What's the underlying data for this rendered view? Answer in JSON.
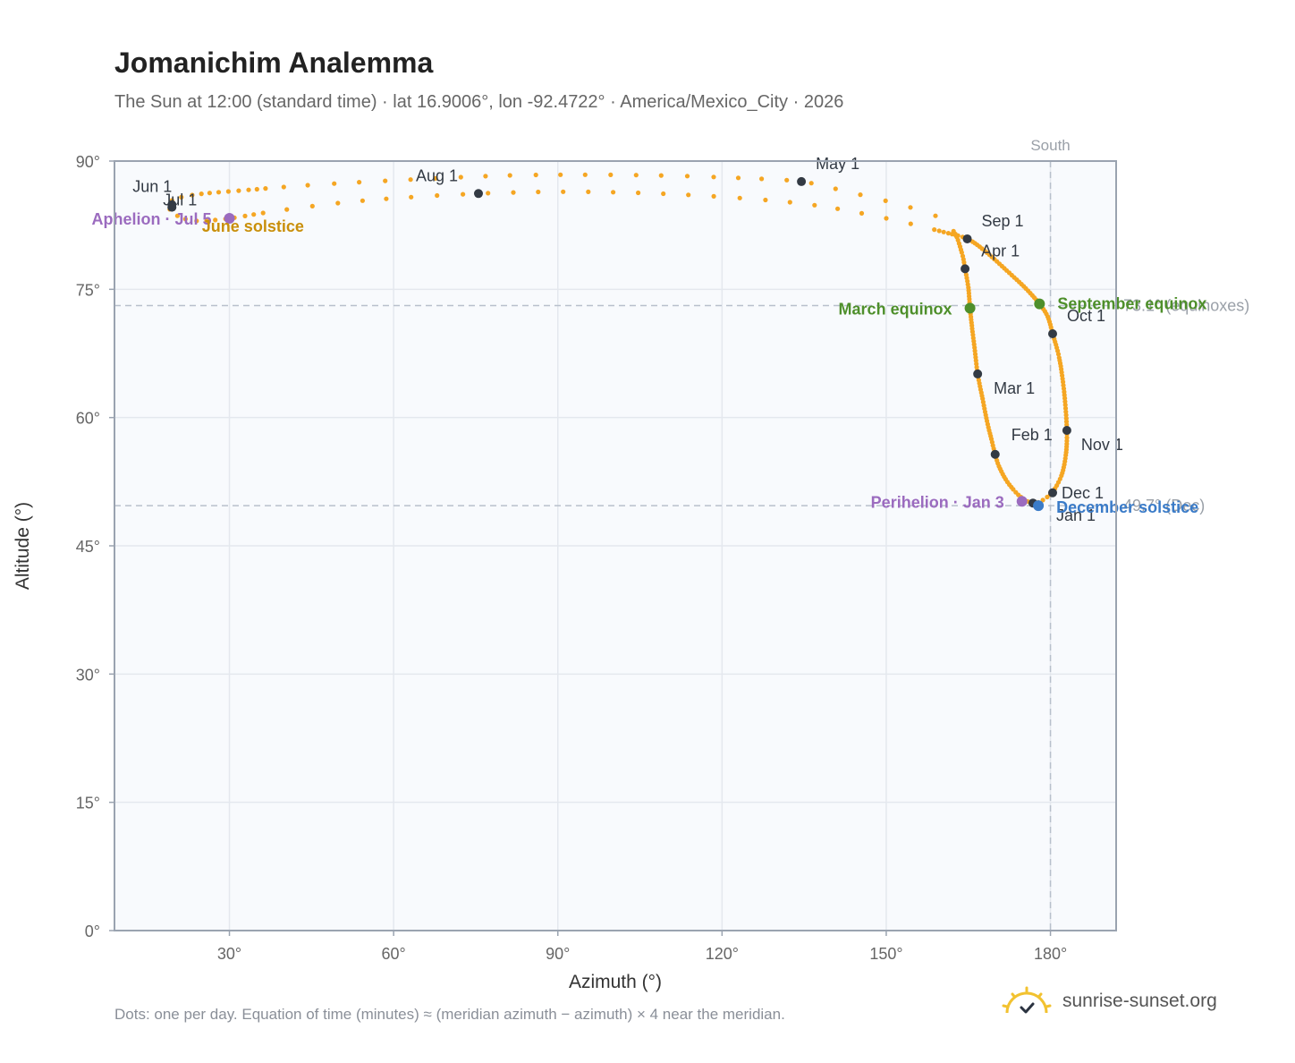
{
  "title": "Jomanichim Analemma",
  "subtitle": "The Sun at 12:00 (standard time) · lat 16.9006°, lon -92.4722° · America/Mexico_City · 2026",
  "footnote": "Dots: one per day. Equation of time (minutes) ≈ (meridian azimuth − azimuth) × 4 near the meridian.",
  "brand": {
    "text": "sunrise-sunset.org",
    "icon": "sun-logo-icon",
    "icon_color": "#f2c230"
  },
  "chart_data": {
    "type": "scatter",
    "xlabel": "Azimuth (°)",
    "ylabel": "Altitude (°)",
    "xlim": [
      9,
      192
    ],
    "ylim": [
      0,
      90
    ],
    "xticks": [
      30,
      60,
      90,
      120,
      150,
      180
    ],
    "xtick_labels": [
      "30°",
      "60°",
      "90°",
      "120°",
      "150°",
      "180°"
    ],
    "yticks": [
      0,
      15,
      30,
      45,
      60,
      75,
      90
    ],
    "ytick_labels": [
      "0°",
      "15°",
      "30°",
      "45°",
      "60°",
      "75°",
      "90°"
    ],
    "grid": true,
    "south_line": {
      "x": 180,
      "label": "South"
    },
    "reference_lines": [
      {
        "y": 73.1,
        "label": "73.1° (equinoxes)"
      },
      {
        "y": 49.7,
        "label": "49.7° (Dec)"
      }
    ],
    "colors": {
      "path": "#f5a623",
      "month": "#333a44",
      "aphelion": "#9b6bbf",
      "equinox": "#4e8f2b",
      "june": "#c98f0a",
      "december": "#3a7bc8",
      "grid": "#e4e8ee",
      "plot_bg": "#f8fafd",
      "frame": "#9aa3b0",
      "refline": "#b8c0cc"
    },
    "path_points": [
      {
        "x": 180.4,
        "y": 51.2
      },
      {
        "x": 179.4,
        "y": 50.7
      },
      {
        "x": 178.2,
        "y": 50.2
      },
      {
        "x": 176.8,
        "y": 50.0
      },
      {
        "x": 175.8,
        "y": 50.2
      },
      {
        "x": 174.6,
        "y": 50.7
      },
      {
        "x": 173.2,
        "y": 51.6
      },
      {
        "x": 171.8,
        "y": 52.8
      },
      {
        "x": 170.6,
        "y": 54.3
      },
      {
        "x": 169.9,
        "y": 55.7
      },
      {
        "x": 169.2,
        "y": 57.5
      },
      {
        "x": 168.4,
        "y": 59.6
      },
      {
        "x": 167.6,
        "y": 62.2
      },
      {
        "x": 166.7,
        "y": 65.1
      },
      {
        "x": 166.2,
        "y": 67.8
      },
      {
        "x": 165.7,
        "y": 70.4
      },
      {
        "x": 165.3,
        "y": 72.8
      },
      {
        "x": 165.0,
        "y": 75.2
      },
      {
        "x": 164.4,
        "y": 77.4
      },
      {
        "x": 163.8,
        "y": 79.3
      },
      {
        "x": 162.3,
        "y": 81.8
      },
      {
        "x": 159.0,
        "y": 83.6
      },
      {
        "x": 152.0,
        "y": 85.0
      },
      {
        "x": 143.0,
        "y": 86.4
      },
      {
        "x": 134.5,
        "y": 87.6
      },
      {
        "x": 124.0,
        "y": 88.0
      },
      {
        "x": 110.0,
        "y": 88.3
      },
      {
        "x": 95.0,
        "y": 88.4
      },
      {
        "x": 80.0,
        "y": 88.3
      },
      {
        "x": 62.0,
        "y": 87.8
      },
      {
        "x": 45.0,
        "y": 87.2
      },
      {
        "x": 33.0,
        "y": 86.6
      },
      {
        "x": 24.0,
        "y": 86.1
      },
      {
        "x": 19.5,
        "y": 85.4
      },
      {
        "x": 18.9,
        "y": 84.6
      },
      {
        "x": 20.5,
        "y": 83.6
      },
      {
        "x": 24.0,
        "y": 83.0
      },
      {
        "x": 30.0,
        "y": 83.3
      },
      {
        "x": 40.0,
        "y": 84.3
      },
      {
        "x": 55.0,
        "y": 85.4
      },
      {
        "x": 75.5,
        "y": 86.2
      },
      {
        "x": 95.0,
        "y": 86.4
      },
      {
        "x": 115.0,
        "y": 86.0
      },
      {
        "x": 135.0,
        "y": 85.0
      },
      {
        "x": 150.0,
        "y": 83.3
      },
      {
        "x": 160.5,
        "y": 81.7
      },
      {
        "x": 164.8,
        "y": 80.9
      },
      {
        "x": 168.0,
        "y": 79.5
      },
      {
        "x": 172.0,
        "y": 77.2
      },
      {
        "x": 175.5,
        "y": 75.1
      },
      {
        "x": 178.0,
        "y": 73.3
      },
      {
        "x": 179.5,
        "y": 71.8
      },
      {
        "x": 180.4,
        "y": 69.8
      },
      {
        "x": 181.6,
        "y": 67.0
      },
      {
        "x": 182.5,
        "y": 63.0
      },
      {
        "x": 183.0,
        "y": 58.5
      },
      {
        "x": 182.8,
        "y": 55.6
      },
      {
        "x": 182.0,
        "y": 53.2
      },
      {
        "x": 180.4,
        "y": 51.2
      }
    ],
    "month_points": [
      {
        "label": "Jan 1",
        "x": 176.8,
        "y": 50.0
      },
      {
        "label": "Feb 1",
        "x": 169.9,
        "y": 55.7
      },
      {
        "label": "Mar 1",
        "x": 166.7,
        "y": 65.1
      },
      {
        "label": "Apr 1",
        "x": 164.4,
        "y": 77.4
      },
      {
        "label": "May 1",
        "x": 134.5,
        "y": 87.6
      },
      {
        "label": "Jun 1",
        "x": 19.5,
        "y": 84.9
      },
      {
        "label": "Jul 1",
        "x": 19.5,
        "y": 84.6
      },
      {
        "label": "Aug 1",
        "x": 75.5,
        "y": 86.2
      },
      {
        "label": "Sep 1",
        "x": 164.8,
        "y": 80.9
      },
      {
        "label": "Oct 1",
        "x": 180.4,
        "y": 69.8
      },
      {
        "label": "Nov 1",
        "x": 183.0,
        "y": 58.5
      },
      {
        "label": "Dec 1",
        "x": 180.4,
        "y": 51.2
      }
    ],
    "events": [
      {
        "label": "Aphelion · Jul 5",
        "x": 30.0,
        "y": 83.3,
        "kind": "aphelion"
      },
      {
        "label": "June solstice",
        "x": 24.0,
        "y": 83.0,
        "kind": "june"
      },
      {
        "label": "March equinox",
        "x": 165.3,
        "y": 72.8,
        "kind": "equinox"
      },
      {
        "label": "September equinox",
        "x": 178.0,
        "y": 73.3,
        "kind": "equinox"
      },
      {
        "label": "Perihelion · Jan 3",
        "x": 174.8,
        "y": 50.2,
        "kind": "aphelion"
      },
      {
        "label": "December solstice",
        "x": 177.8,
        "y": 49.7,
        "kind": "december"
      }
    ]
  }
}
